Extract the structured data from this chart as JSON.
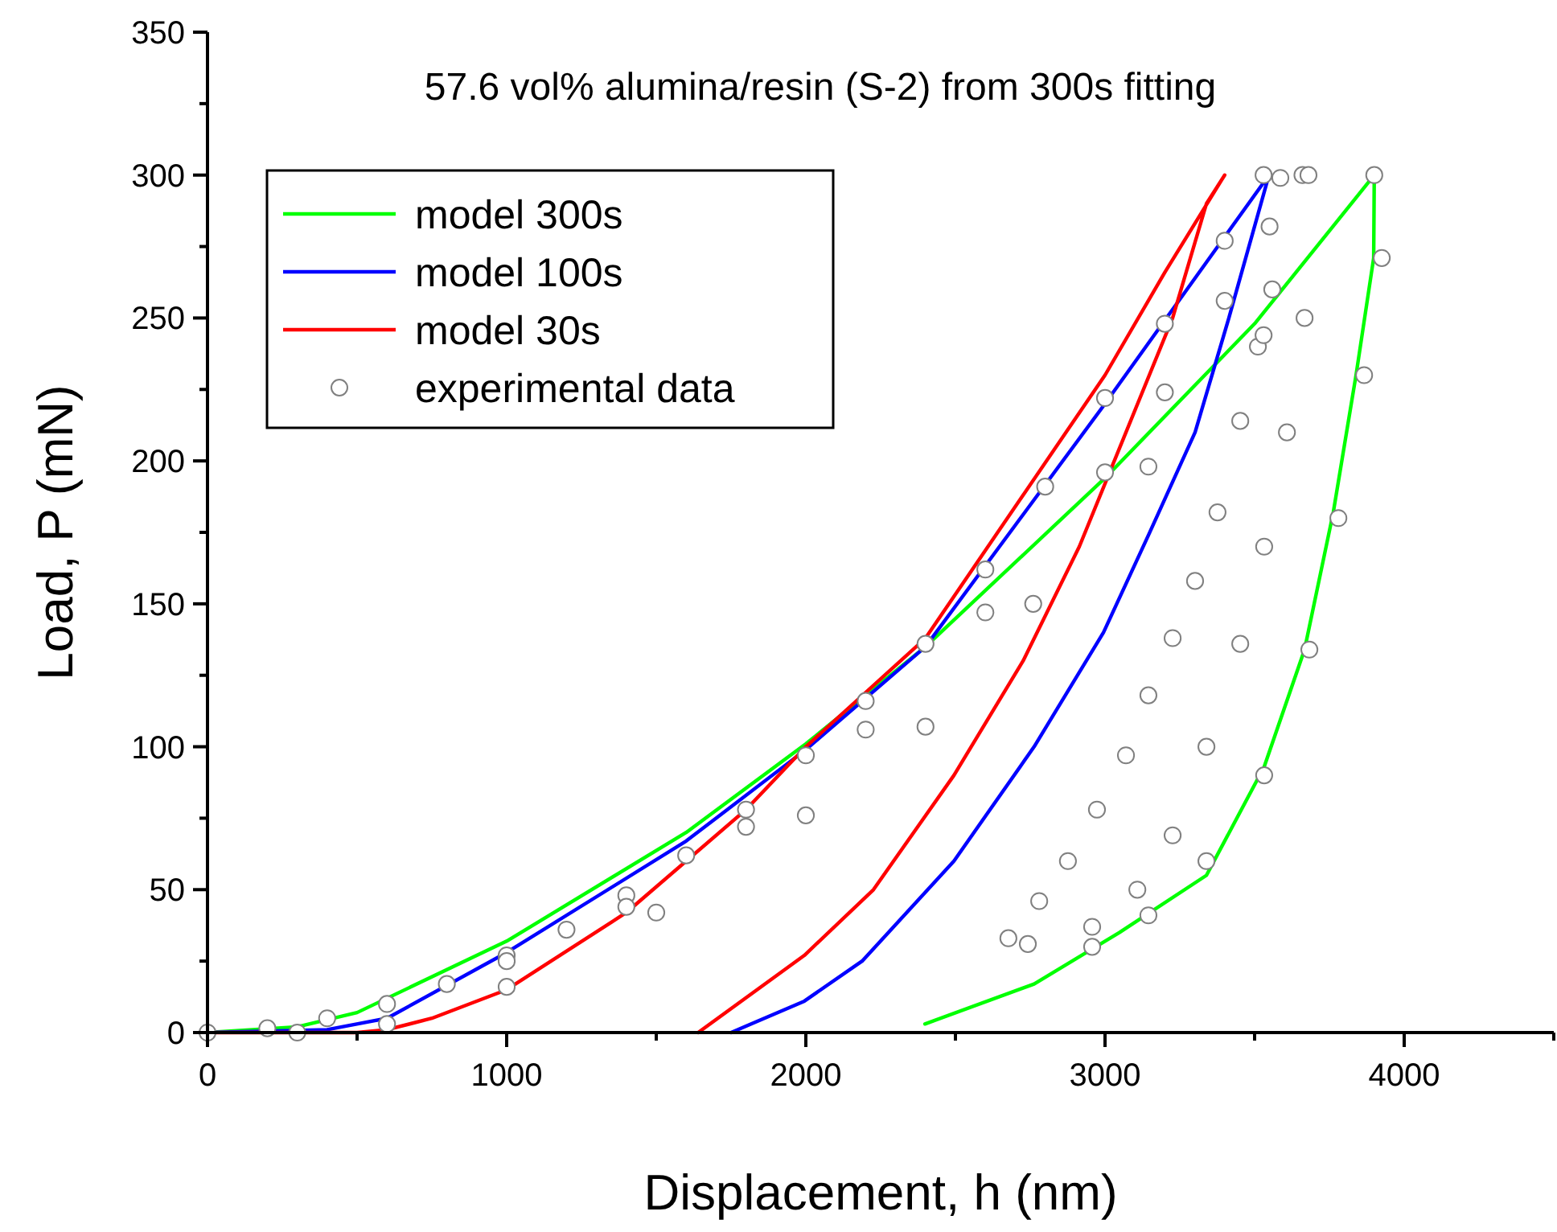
{
  "chart_data": {
    "type": "line",
    "title": "57.6 vol% alumina/resin (S-2) from 300s fitting",
    "xlabel": "Displacement, h (nm)",
    "ylabel": "Load, P (mN)",
    "xlim": [
      0,
      4500
    ],
    "ylim": [
      0,
      350
    ],
    "xticks": [
      0,
      {
        "value": 500,
        "label": null
      },
      1000,
      {
        "value": 1500,
        "label": null
      },
      2000,
      {
        "value": 2500,
        "label": null
      },
      3000,
      {
        "value": 3500,
        "label": null
      },
      4000,
      {
        "value": 4500,
        "label": null
      }
    ],
    "yticks": [
      0,
      {
        "value": 25,
        "label": null
      },
      50,
      {
        "value": 75,
        "label": null
      },
      100,
      {
        "value": 125,
        "label": null
      },
      150,
      {
        "value": 175,
        "label": null
      },
      200,
      {
        "value": 225,
        "label": null
      },
      250,
      {
        "value": 275,
        "label": null
      },
      300,
      {
        "value": 325,
        "label": null
      },
      350
    ],
    "grid": false,
    "legend": "top left",
    "marker": "none",
    "line_style": "solid",
    "series": [
      {
        "name": "model 300s",
        "color": "#00ff00",
        "x": [
          0,
          300,
          500,
          1000,
          1600,
          2000,
          2400,
          3000,
          3500,
          3900,
          3898,
          3839,
          3763,
          3667,
          3532,
          3339,
          3048,
          2763,
          2398
        ],
        "values": [
          0,
          2,
          7,
          32,
          70,
          101,
          135,
          194,
          248,
          300,
          271,
          230,
          182,
          134,
          93,
          55,
          35,
          17,
          3
        ]
      },
      {
        "name": "model 100s",
        "color": "#0000ff",
        "x": [
          0,
          400,
          600,
          1000,
          1600,
          2000,
          2400,
          3000,
          3548,
          3414,
          3301,
          3145,
          2995,
          2763,
          2495,
          2188,
          1995,
          1750
        ],
        "values": [
          0,
          1,
          5,
          28,
          67,
          99,
          135,
          220,
          300,
          250,
          210,
          174,
          140,
          100,
          60,
          25,
          11,
          0
        ]
      },
      {
        "name": "model 30s",
        "color": "#ff0000",
        "x": [
          0,
          500,
          600,
          750,
          1000,
          1400,
          1800,
          2000,
          2400,
          3000,
          3200,
          3400,
          3339,
          3226,
          3070,
          2914,
          2726,
          2495,
          2226,
          1995,
          1640
        ],
        "values": [
          0,
          0,
          1,
          5,
          15,
          42,
          78,
          100,
          138,
          230,
          266,
          300,
          290,
          250,
          210,
          170,
          130,
          90,
          50,
          27,
          0
        ]
      },
      {
        "name": "experimental data",
        "color": "#808080",
        "type": "scatter",
        "marker": "circle",
        "x": [
          0,
          200,
          400,
          600,
          800,
          1000,
          1200,
          1400,
          1600,
          1800,
          2000,
          2200,
          2400,
          2600,
          2800,
          3000,
          3200,
          3400,
          3530,
          3586,
          3559,
          3511,
          3452,
          3376,
          3301,
          3226,
          3145,
          3070,
          2973,
          2876,
          2780,
          2677,
          1000,
          1400,
          1800,
          2200,
          2600,
          3000,
          3200,
          3400,
          3550,
          3660,
          3680,
          3667,
          3608,
          3532,
          3452,
          3339,
          3226,
          3108,
          2957,
          2742,
          300,
          600,
          1000,
          1500,
          2000,
          2400,
          2760,
          3145,
          3530,
          3900,
          3925,
          3866,
          3780,
          3683,
          3532,
          3339,
          3145,
          2957
        ],
        "values": [
          0,
          1.5,
          5,
          10,
          17,
          27,
          36,
          48,
          62,
          78,
          97,
          116,
          136,
          162,
          191,
          222,
          248,
          277,
          300,
          299,
          260,
          240,
          214,
          182,
          158,
          138,
          118,
          97,
          78,
          60,
          46,
          33,
          25,
          44,
          72,
          106,
          147,
          196,
          224,
          256,
          282,
          300,
          300,
          250,
          210,
          170,
          136,
          100,
          69,
          50,
          37,
          31,
          0,
          3,
          16,
          42,
          76,
          107,
          150,
          198,
          244,
          300,
          271,
          230,
          180,
          134,
          90,
          60,
          41,
          30
        ]
      }
    ]
  }
}
